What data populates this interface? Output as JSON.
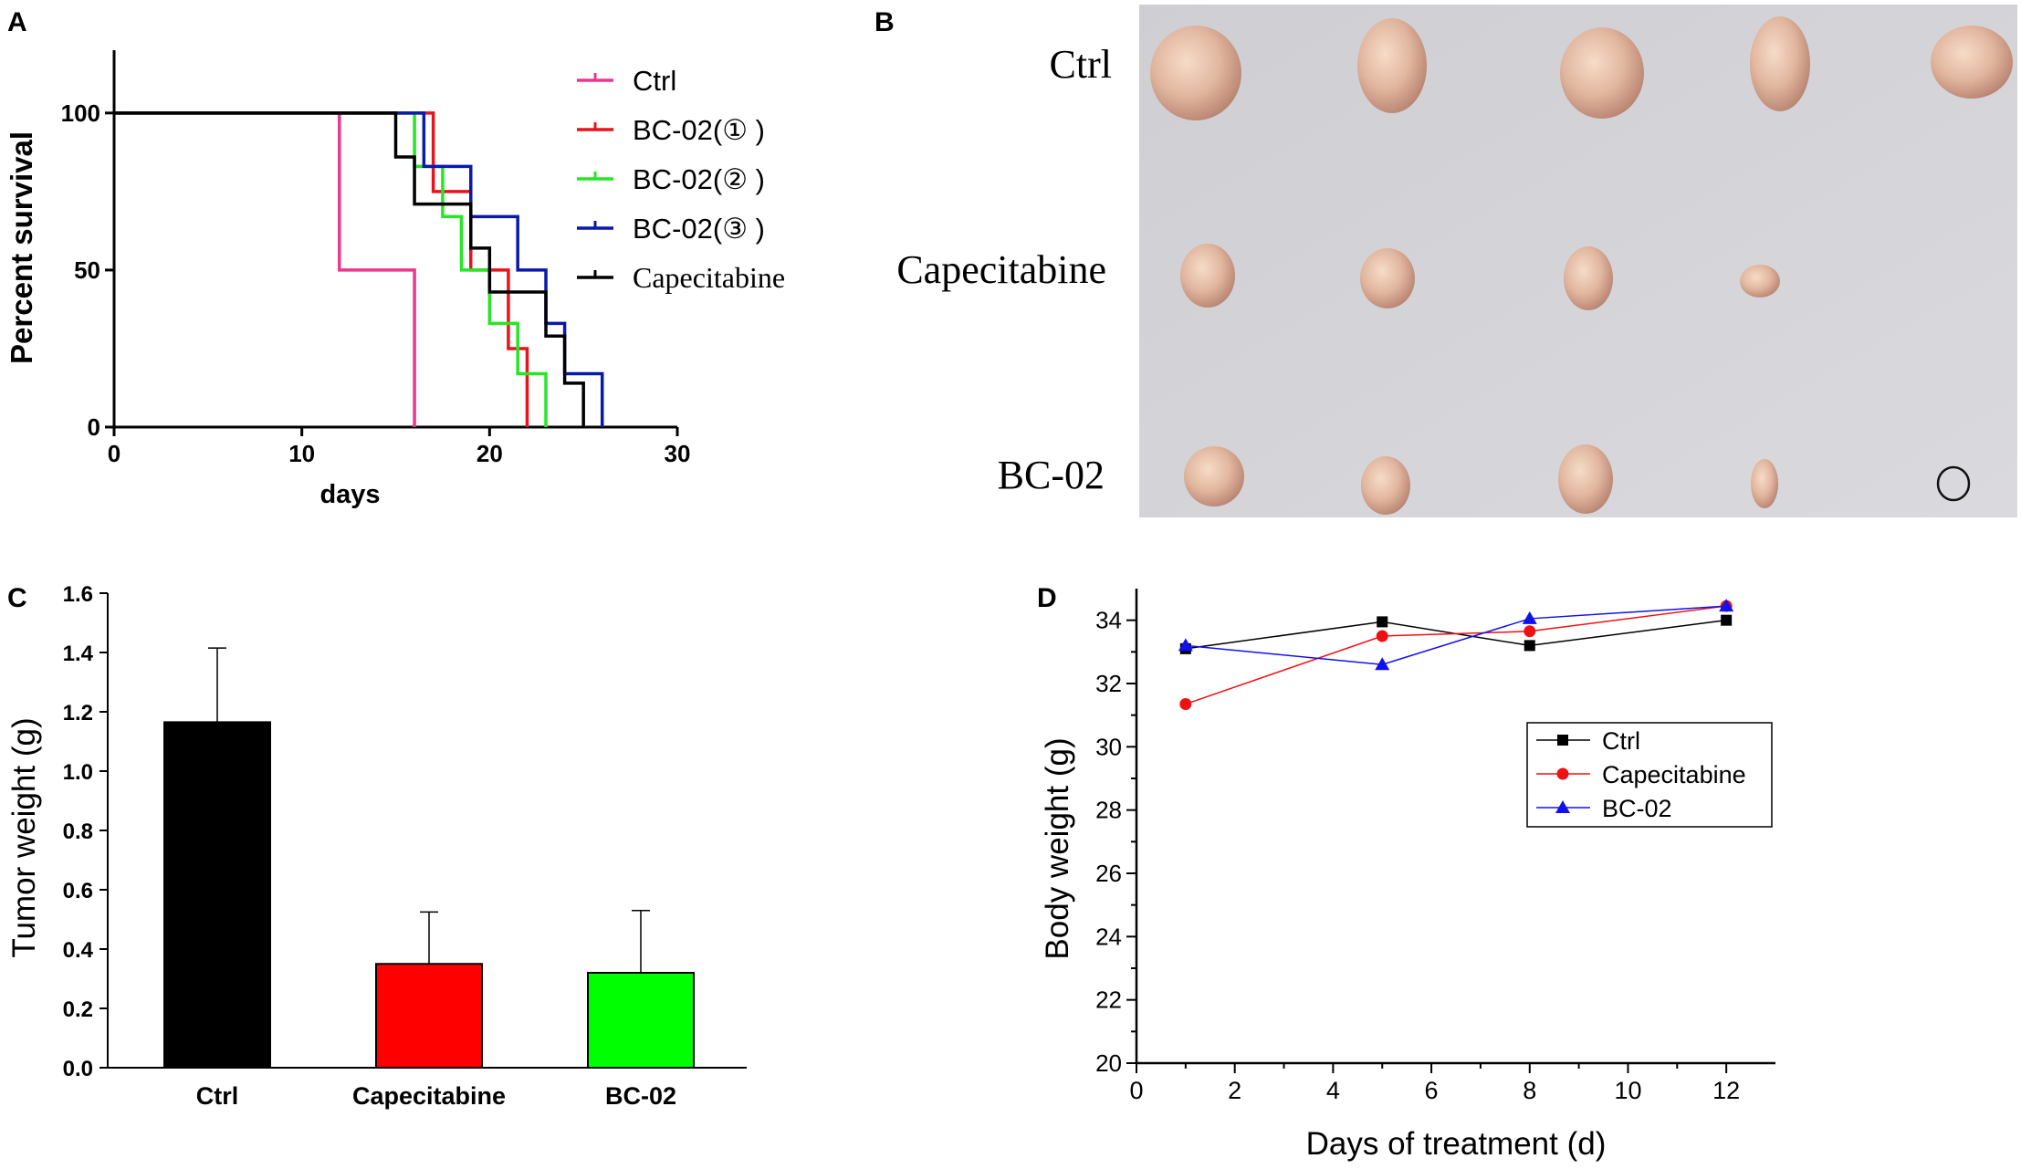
{
  "chart_data": [
    {
      "panel": "A",
      "type": "line",
      "subtype": "kaplan-meier",
      "xlabel": "days",
      "ylabel": "Percent survival",
      "xlim": [
        0,
        30
      ],
      "ylim": [
        0,
        120
      ],
      "xticks": [
        "0",
        "10",
        "20",
        "30"
      ],
      "yticks": [
        "0",
        "50",
        "100"
      ],
      "series": [
        {
          "name": "Ctrl",
          "color": "#e8388f",
          "steps": [
            [
              0,
              100
            ],
            [
              12,
              50
            ],
            [
              16,
              0
            ]
          ]
        },
        {
          "name": "BC-02(① )",
          "color": "#e8141b",
          "steps": [
            [
              0,
              100
            ],
            [
              17,
              75
            ],
            [
              19,
              50
            ],
            [
              20,
              50
            ],
            [
              21,
              25
            ],
            [
              22,
              0
            ]
          ]
        },
        {
          "name": "BC-02(② )",
          "color": "#26e626",
          "steps": [
            [
              0,
              100
            ],
            [
              16,
              83
            ],
            [
              17.5,
              67
            ],
            [
              18.5,
              50
            ],
            [
              20,
              33
            ],
            [
              21.5,
              17
            ],
            [
              23,
              0
            ]
          ]
        },
        {
          "name": "BC-02(③ )",
          "color": "#0a1aa8",
          "steps": [
            [
              0,
              100
            ],
            [
              16.5,
              83
            ],
            [
              19,
              67
            ],
            [
              21.5,
              50
            ],
            [
              23,
              33
            ],
            [
              24,
              17
            ],
            [
              26,
              0
            ]
          ]
        },
        {
          "name": "Capecitabine",
          "color": "#000000",
          "steps": [
            [
              0,
              100
            ],
            [
              15,
              86
            ],
            [
              16,
              71
            ],
            [
              19,
              57
            ],
            [
              20,
              43
            ],
            [
              23,
              29
            ],
            [
              24,
              14
            ],
            [
              25,
              0
            ]
          ]
        }
      ]
    },
    {
      "panel": "B",
      "type": "image",
      "row_labels": [
        "Ctrl",
        "Capecitabine",
        "BC-02"
      ]
    },
    {
      "panel": "C",
      "type": "bar",
      "ylabel": "Tumor weight (g)",
      "ylim": [
        0,
        1.6
      ],
      "yticks": [
        "0.0",
        "0.2",
        "0.4",
        "0.6",
        "0.8",
        "1.0",
        "1.2",
        "1.4",
        "1.6"
      ],
      "categories": [
        "Ctrl",
        "Capecitabine",
        "BC-02"
      ],
      "values": [
        1.165,
        0.35,
        0.32
      ],
      "errors": [
        0.25,
        0.175,
        0.21
      ],
      "colors": [
        "#000000",
        "#ff0000",
        "#00ff00"
      ]
    },
    {
      "panel": "D",
      "type": "line",
      "xlabel": "Days of treatment (d)",
      "ylabel": "Body weight (g)",
      "xlim": [
        0,
        13
      ],
      "ylim": [
        20,
        35
      ],
      "xticks": [
        "0",
        "2",
        "4",
        "6",
        "8",
        "10",
        "12"
      ],
      "yticks": [
        "20",
        "22",
        "24",
        "26",
        "28",
        "30",
        "32",
        "34"
      ],
      "x": [
        1,
        5,
        8,
        12
      ],
      "series": [
        {
          "name": "Ctrl",
          "color": "#000000",
          "marker": "square",
          "values": [
            33.1,
            33.95,
            33.2,
            34.0
          ]
        },
        {
          "name": "Capecitabine",
          "color": "#ee1111",
          "marker": "circle",
          "values": [
            31.35,
            33.5,
            33.65,
            34.45
          ]
        },
        {
          "name": "BC-02",
          "color": "#1111ee",
          "marker": "triangle",
          "values": [
            33.2,
            32.6,
            34.05,
            34.45
          ]
        }
      ]
    }
  ],
  "panels": {
    "a": {
      "letter": "A"
    },
    "b": {
      "letter": "B"
    },
    "c": {
      "letter": "C"
    },
    "d": {
      "letter": "D"
    }
  }
}
